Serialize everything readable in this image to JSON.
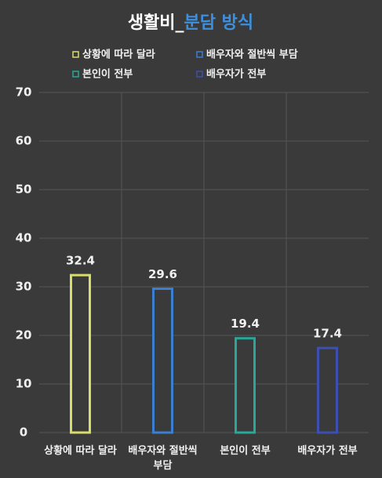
{
  "chart_data": {
    "type": "bar",
    "title": [
      "생활비_",
      "분담 방식"
    ],
    "title_colors": [
      "#ffffff",
      "#3d8fe0"
    ],
    "categories": [
      "상황에 따라 달라",
      "배우자와 절반씩 부담",
      "본인이 전부",
      "배우자가 전부"
    ],
    "values": [
      32.4,
      29.6,
      19.4,
      17.4
    ],
    "colors": [
      "#d8dc6a",
      "#3a7fd0",
      "#27a89a",
      "#3d4fb0"
    ],
    "ylim": [
      0,
      70
    ],
    "yticks": [
      0,
      10,
      20,
      30,
      40,
      50,
      60,
      70
    ],
    "grid": true,
    "legend": "top"
  }
}
